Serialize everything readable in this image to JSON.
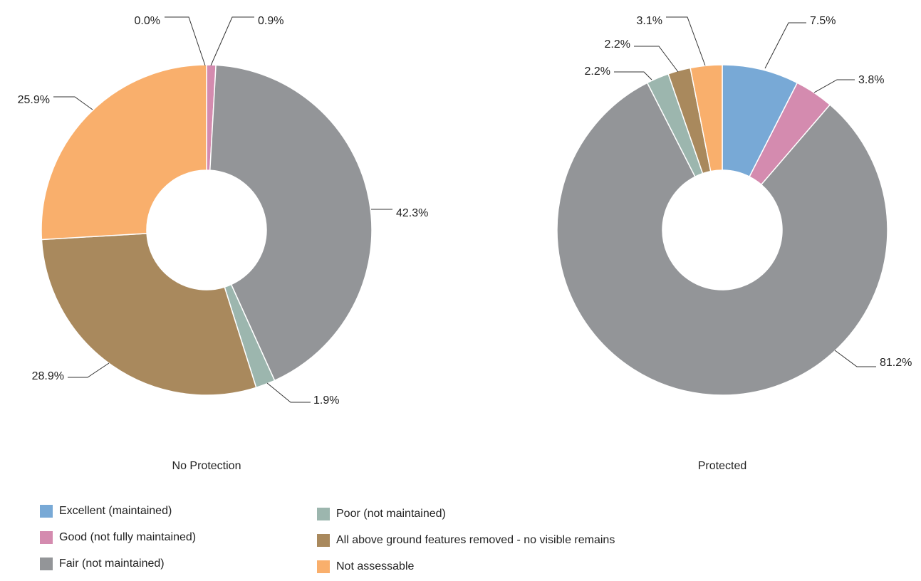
{
  "chart_data": [
    {
      "type": "pie",
      "subtype": "donut",
      "title": "No Protection",
      "categories": [
        "Excellent (maintained)",
        "Good (not fully maintained)",
        "Fair (not maintained)",
        "Poor (not maintained)",
        "All above ground features removed - no visible remains",
        "Not assessable"
      ],
      "values": [
        0.0,
        0.9,
        42.3,
        1.9,
        28.9,
        25.9
      ],
      "labels": [
        "0.0%",
        "0.9%",
        "42.3%",
        "1.9%",
        "28.9%",
        "25.9%"
      ]
    },
    {
      "type": "pie",
      "subtype": "donut",
      "title": "Protected",
      "categories": [
        "Excellent (maintained)",
        "Good (not fully maintained)",
        "Fair (not maintained)",
        "Poor (not maintained)",
        "All above ground features removed - no visible remains",
        "Not assessable"
      ],
      "values": [
        7.5,
        3.8,
        81.2,
        2.2,
        2.2,
        3.1
      ],
      "labels": [
        "7.5%",
        "3.8%",
        "81.2%",
        "2.2%",
        "2.2%",
        "3.1%"
      ]
    }
  ],
  "legend": {
    "position": "bottom",
    "items": [
      {
        "label": "Excellent (maintained)",
        "color": "#78A9D6"
      },
      {
        "label": "Good (not fully maintained)",
        "color": "#D48BAF"
      },
      {
        "label": "Fair (not maintained)",
        "color": "#939598"
      },
      {
        "label": "Poor (not maintained)",
        "color": "#9CB6AE"
      },
      {
        "label": "All above ground features removed - no visible remains",
        "color": "#A9895D"
      },
      {
        "label": "Not assessable",
        "color": "#F9AF6C"
      }
    ]
  }
}
